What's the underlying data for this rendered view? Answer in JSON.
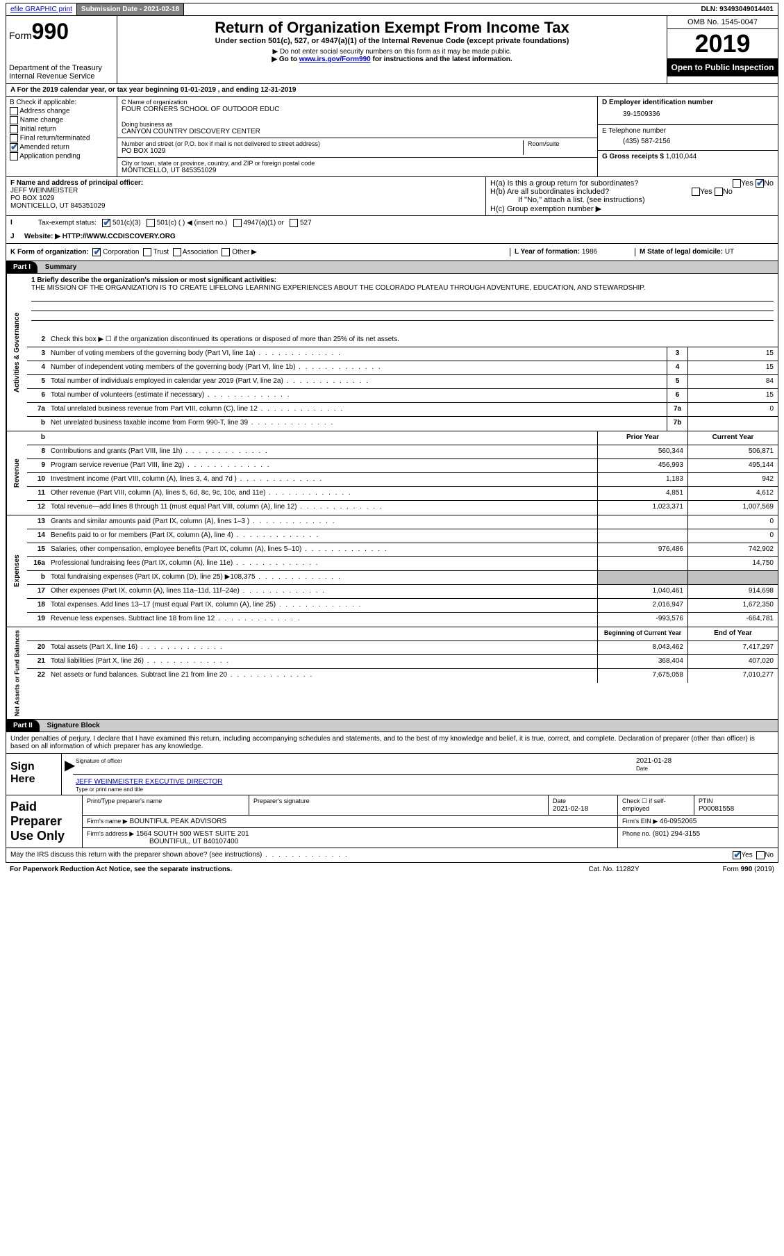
{
  "topbar": {
    "efile": "efile GRAPHIC print",
    "submission_label": "Submission Date - 2021-02-18",
    "dln": "DLN: 93493049014401"
  },
  "header": {
    "form_word": "Form",
    "form_num": "990",
    "dept": "Department of the Treasury\nInternal Revenue Service",
    "title": "Return of Organization Exempt From Income Tax",
    "subtitle": "Under section 501(c), 527, or 4947(a)(1) of the Internal Revenue Code (except private foundations)",
    "note1": "▶ Do not enter social security numbers on this form as it may be made public.",
    "note2_pre": "▶ Go to ",
    "note2_link": "www.irs.gov/Form990",
    "note2_post": " for instructions and the latest information.",
    "omb": "OMB No. 1545-0047",
    "year": "2019",
    "open": "Open to Public Inspection"
  },
  "rowA": "A For the 2019 calendar year, or tax year beginning 01-01-2019   , and ending 12-31-2019",
  "colB": {
    "label": "B Check if applicable:",
    "items": [
      "Address change",
      "Name change",
      "Initial return",
      "Final return/terminated",
      "Amended return",
      "Application pending"
    ],
    "checked_idx": 4
  },
  "colC": {
    "name_label": "C Name of organization",
    "name": "FOUR CORNERS SCHOOL OF OUTDOOR EDUC",
    "dba_label": "Doing business as",
    "dba": "CANYON COUNTRY DISCOVERY CENTER",
    "addr_label": "Number and street (or P.O. box if mail is not delivered to street address)",
    "room_label": "Room/suite",
    "addr": "PO BOX 1029",
    "city_label": "City or town, state or province, country, and ZIP or foreign postal code",
    "city": "MONTICELLO, UT  845351029"
  },
  "colD": {
    "ein_label": "D Employer identification number",
    "ein": "39-1509336",
    "tel_label": "E Telephone number",
    "tel": "(435) 587-2156",
    "gross_label": "G Gross receipts $ ",
    "gross": "1,010,044"
  },
  "rowF": {
    "label": "F  Name and address of principal officer:",
    "name": "JEFF WEINMEISTER",
    "addr1": "PO BOX 1029",
    "addr2": "MONTICELLO, UT  845351029"
  },
  "rowH": {
    "a": "H(a)  Is this a group return for subordinates?",
    "b": "H(b)  Are all subordinates included?",
    "bnote": "If \"No,\" attach a list. (see instructions)",
    "c": "H(c)  Group exemption number ▶"
  },
  "rowI": {
    "label": "Tax-exempt status:",
    "opts": [
      "501(c)(3)",
      "501(c) (  ) ◀ (insert no.)",
      "4947(a)(1) or",
      "527"
    ]
  },
  "rowJ": {
    "label": "J",
    "text": "Website: ▶  HTTP://WWW.CCDISCOVERY.ORG"
  },
  "rowK": {
    "label": "K Form of organization:",
    "opts": [
      "Corporation",
      "Trust",
      "Association",
      "Other ▶"
    ],
    "l_label": "L Year of formation: ",
    "l_val": "1986",
    "m_label": "M State of legal domicile: ",
    "m_val": "UT"
  },
  "part1": {
    "hdr": "Part I",
    "title": "Summary"
  },
  "mission": {
    "label": "1  Briefly describe the organization's mission or most significant activities:",
    "text": "THE MISSION OF THE ORGANIZATION IS TO CREATE LIFELONG LEARNING EXPERIENCES ABOUT THE COLORADO PLATEAU THROUGH ADVENTURE, EDUCATION, AND STEWARDSHIP."
  },
  "gov_rows": [
    {
      "n": "2",
      "d": "Check this box ▶ ☐  if the organization discontinued its operations or disposed of more than 25% of its net assets.",
      "box": "",
      "v": ""
    },
    {
      "n": "3",
      "d": "Number of voting members of the governing body (Part VI, line 1a)",
      "box": "3",
      "v": "15"
    },
    {
      "n": "4",
      "d": "Number of independent voting members of the governing body (Part VI, line 1b)",
      "box": "4",
      "v": "15"
    },
    {
      "n": "5",
      "d": "Total number of individuals employed in calendar year 2019 (Part V, line 2a)",
      "box": "5",
      "v": "84"
    },
    {
      "n": "6",
      "d": "Total number of volunteers (estimate if necessary)",
      "box": "6",
      "v": "15"
    },
    {
      "n": "7a",
      "d": "Total unrelated business revenue from Part VIII, column (C), line 12",
      "box": "7a",
      "v": "0"
    },
    {
      "n": "b",
      "d_pre": "",
      "d": "Net unrelated business taxable income from Form 990-T, line 39",
      "box": "7b",
      "v": ""
    }
  ],
  "rev_head": {
    "py": "Prior Year",
    "cy": "Current Year"
  },
  "rev_rows": [
    {
      "n": "8",
      "d": "Contributions and grants (Part VIII, line 1h)",
      "py": "560,344",
      "cy": "506,871"
    },
    {
      "n": "9",
      "d": "Program service revenue (Part VIII, line 2g)",
      "py": "456,993",
      "cy": "495,144"
    },
    {
      "n": "10",
      "d": "Investment income (Part VIII, column (A), lines 3, 4, and 7d )",
      "py": "1,183",
      "cy": "942"
    },
    {
      "n": "11",
      "d": "Other revenue (Part VIII, column (A), lines 5, 6d, 8c, 9c, 10c, and 11e)",
      "py": "4,851",
      "cy": "4,612"
    },
    {
      "n": "12",
      "d": "Total revenue—add lines 8 through 11 (must equal Part VIII, column (A), line 12)",
      "py": "1,023,371",
      "cy": "1,007,569"
    }
  ],
  "exp_rows": [
    {
      "n": "13",
      "d": "Grants and similar amounts paid (Part IX, column (A), lines 1–3 )",
      "py": "",
      "cy": "0"
    },
    {
      "n": "14",
      "d": "Benefits paid to or for members (Part IX, column (A), line 4)",
      "py": "",
      "cy": "0"
    },
    {
      "n": "15",
      "d": "Salaries, other compensation, employee benefits (Part IX, column (A), lines 5–10)",
      "py": "976,486",
      "cy": "742,902"
    },
    {
      "n": "16a",
      "d": "Professional fundraising fees (Part IX, column (A), line 11e)",
      "py": "",
      "cy": "14,750"
    },
    {
      "n": "b",
      "d": "Total fundraising expenses (Part IX, column (D), line 25) ▶108,375",
      "py": "__shade__",
      "cy": "__shade__"
    },
    {
      "n": "17",
      "d": "Other expenses (Part IX, column (A), lines 11a–11d, 11f–24e)",
      "py": "1,040,461",
      "cy": "914,698"
    },
    {
      "n": "18",
      "d": "Total expenses. Add lines 13–17 (must equal Part IX, column (A), line 25)",
      "py": "2,016,947",
      "cy": "1,672,350"
    },
    {
      "n": "19",
      "d": "Revenue less expenses. Subtract line 18 from line 12",
      "py": "-993,576",
      "cy": "-664,781"
    }
  ],
  "net_head": {
    "py": "Beginning of Current Year",
    "cy": "End of Year"
  },
  "net_rows": [
    {
      "n": "20",
      "d": "Total assets (Part X, line 16)",
      "py": "8,043,462",
      "cy": "7,417,297"
    },
    {
      "n": "21",
      "d": "Total liabilities (Part X, line 26)",
      "py": "368,404",
      "cy": "407,020"
    },
    {
      "n": "22",
      "d": "Net assets or fund balances. Subtract line 21 from line 20",
      "py": "7,675,058",
      "cy": "7,010,277"
    }
  ],
  "part2": {
    "hdr": "Part II",
    "title": "Signature Block"
  },
  "sig": {
    "decl": "Under penalties of perjury, I declare that I have examined this return, including accompanying schedules and statements, and to the best of my knowledge and belief, it is true, correct, and complete. Declaration of preparer (other than officer) is based on all information of which preparer has any knowledge.",
    "sign_here": "Sign Here",
    "sig_label": "Signature of officer",
    "date_label": "Date",
    "date": "2021-01-28",
    "name_title": "JEFF WEINMEISTER  EXECUTIVE DIRECTOR",
    "name_title_label": "Type or print name and title"
  },
  "prep": {
    "side": "Paid Preparer Use Only",
    "r1": {
      "c1": "Print/Type preparer's name",
      "c2": "Preparer's signature",
      "c3_l": "Date",
      "c3": "2021-02-18",
      "c4": "Check ☐ if self-employed",
      "c5_l": "PTIN",
      "c5": "P00081558"
    },
    "r2": {
      "label": "Firm's name    ▶",
      "val": "BOUNTIFUL PEAK ADVISORS",
      "ein_l": "Firm's EIN ▶",
      "ein": "46-0952065"
    },
    "r3": {
      "label": "Firm's address ▶",
      "val1": "1564 SOUTH 500 WEST SUITE 201",
      "val2": "BOUNTIFUL, UT  840107400",
      "ph_l": "Phone no.",
      "ph": "(801) 294-3155"
    },
    "discuss": "May the IRS discuss this return with the preparer shown above? (see instructions)"
  },
  "foot": {
    "l": "For Paperwork Reduction Act Notice, see the separate instructions.",
    "c": "Cat. No. 11282Y",
    "r": "Form 990 (2019)"
  },
  "sides": {
    "gov": "Activities & Governance",
    "rev": "Revenue",
    "exp": "Expenses",
    "net": "Net Assets or Fund Balances"
  }
}
